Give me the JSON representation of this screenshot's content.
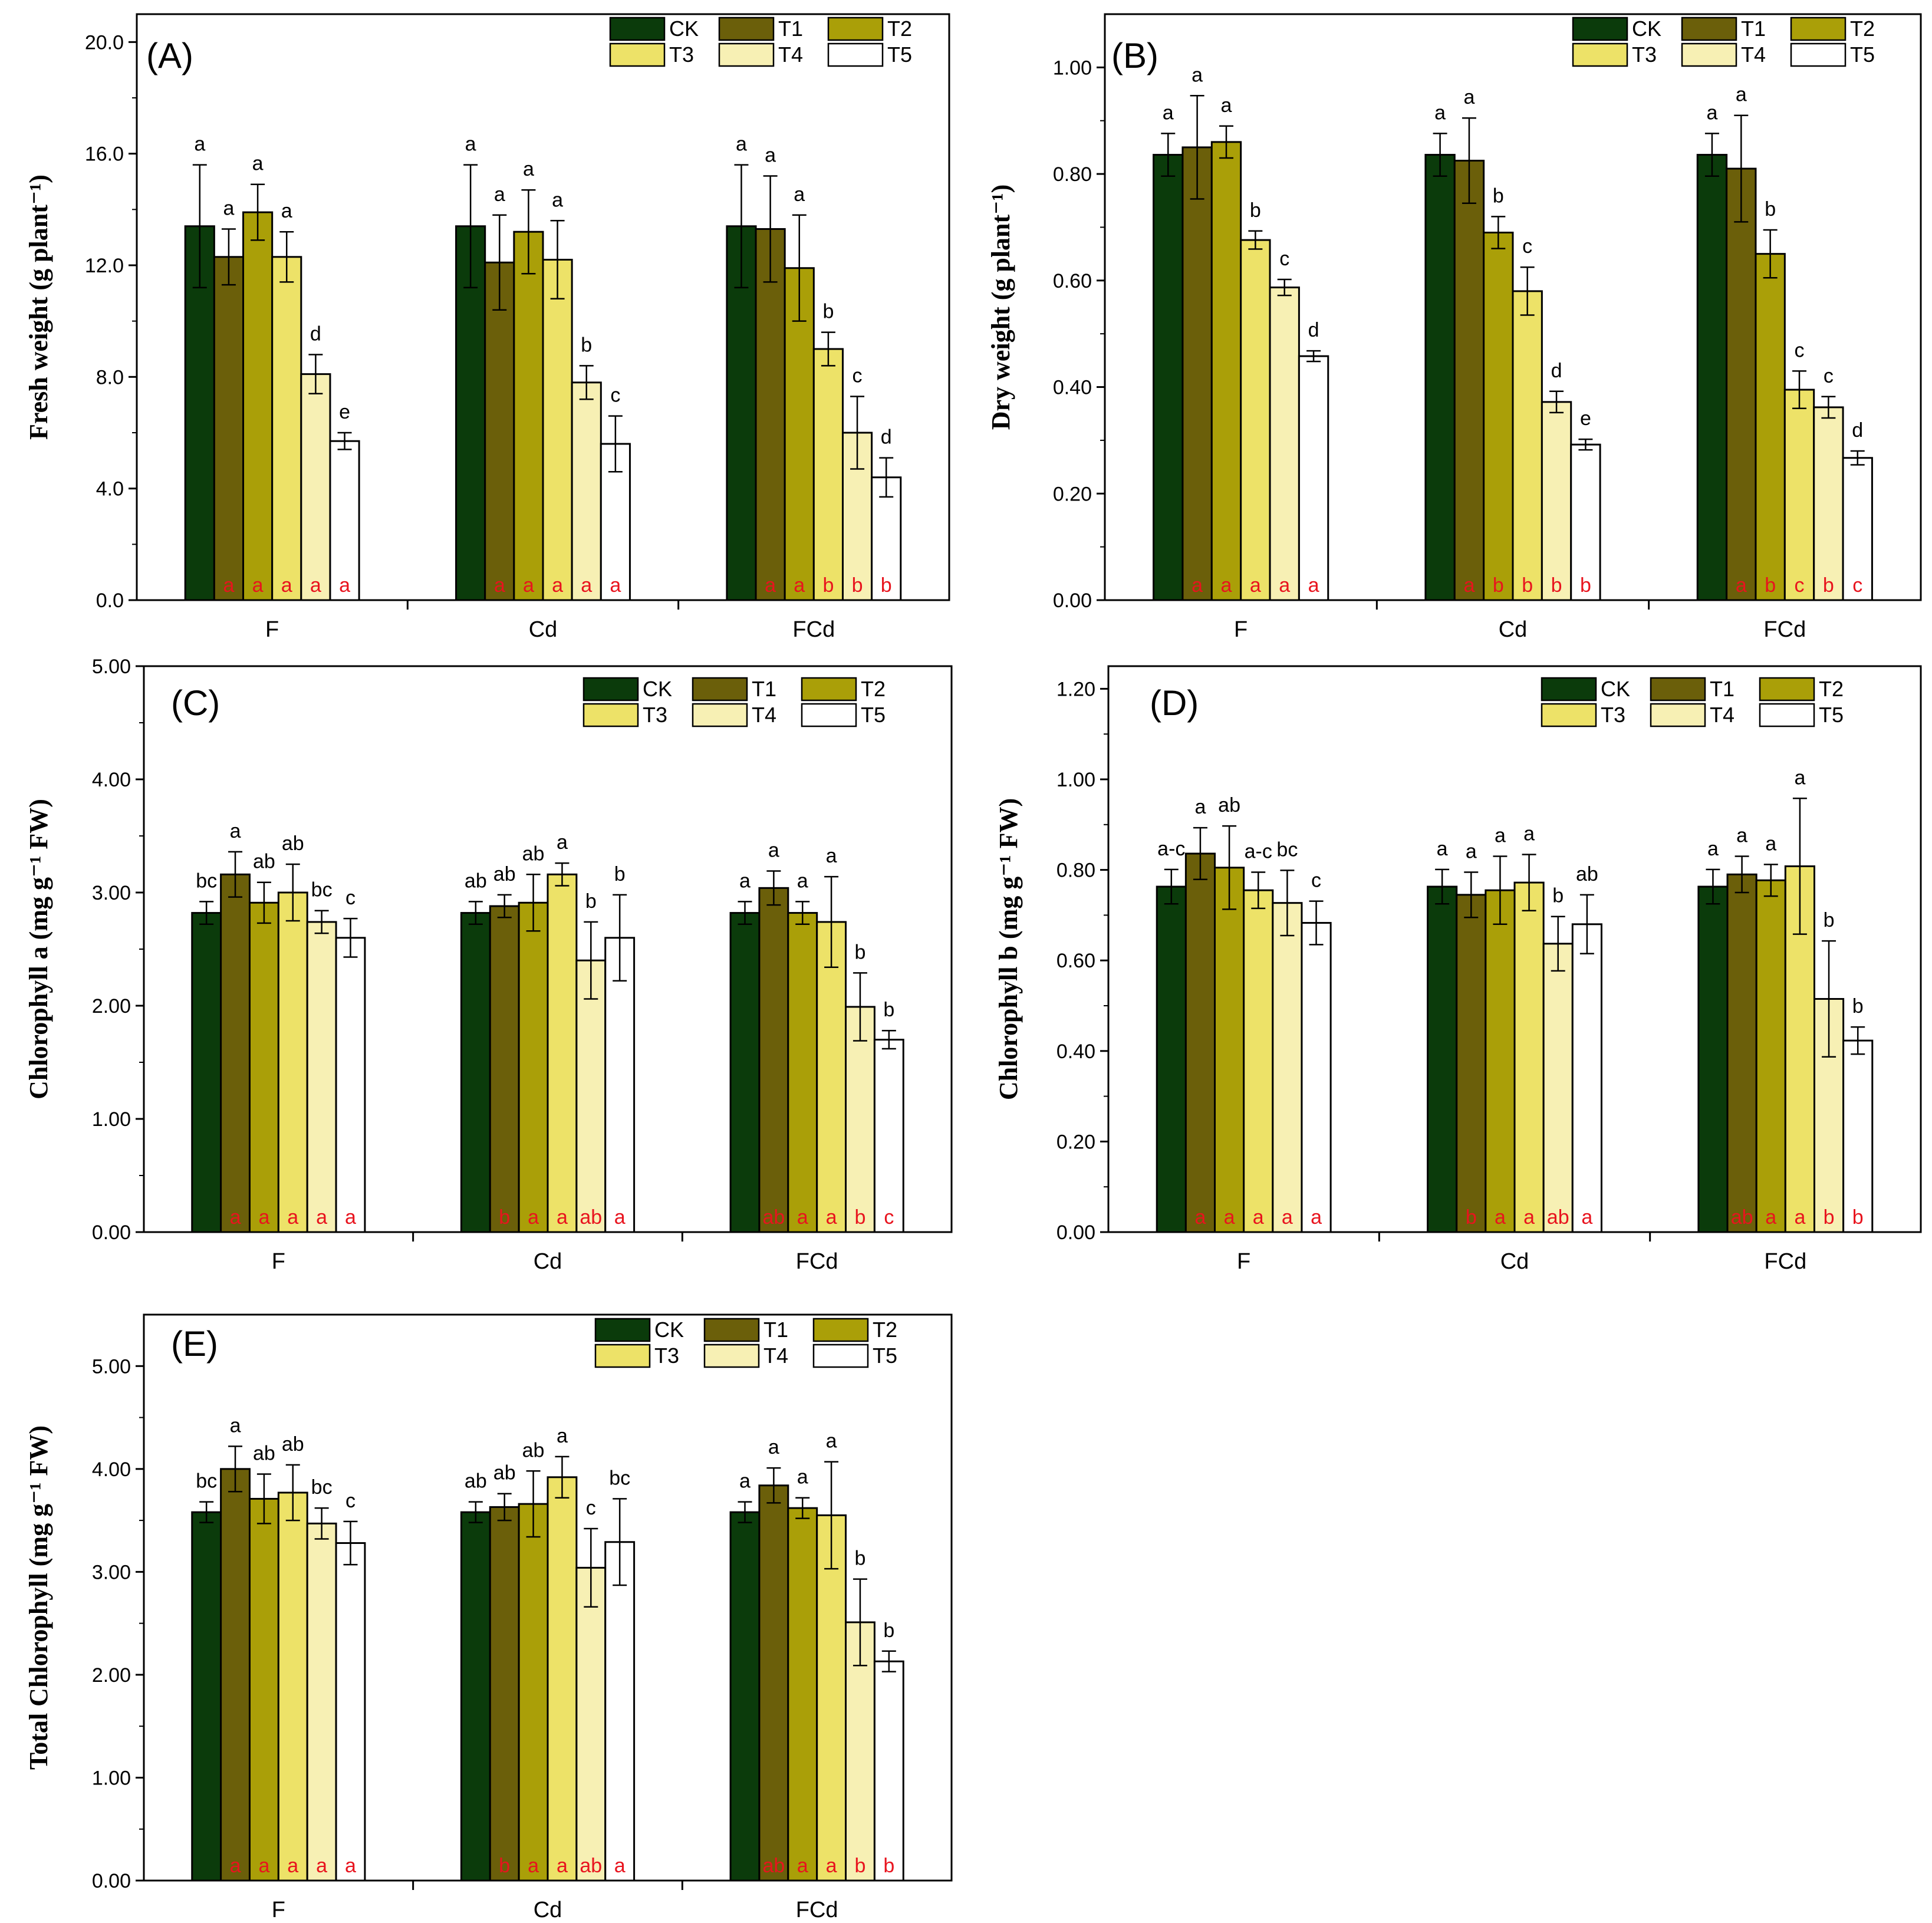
{
  "legend_labels": [
    "CK",
    "T1",
    "T2",
    "T3",
    "T4",
    "T5"
  ],
  "colors": {
    "CK": "#0b3b0b",
    "T1": "#6b5f0a",
    "T2": "#aa9f08",
    "T3": "#ede268",
    "T4": "#f7f0b4",
    "T5": "#ffffff",
    "axis": "#000000",
    "secondary_letters": "#e8141e"
  },
  "chart_data": [
    {
      "panel": "(A)",
      "type": "bar",
      "ylabel": "Fresh weight (g plant⁻¹)",
      "ylim": [
        0,
        21.0
      ],
      "yticks": [
        "0.0",
        "4.0",
        "8.0",
        "12.0",
        "16.0",
        "20.0"
      ],
      "ytick_values": [
        0,
        4,
        8,
        12,
        16,
        20
      ],
      "categories": [
        "F",
        "Cd",
        "FCd"
      ],
      "series": [
        {
          "name": "CK",
          "values": [
            13.4,
            13.4,
            13.4
          ],
          "errors": [
            2.2,
            2.2,
            2.2
          ]
        },
        {
          "name": "T1",
          "values": [
            12.3,
            12.1,
            13.3
          ],
          "errors": [
            1.0,
            1.7,
            1.9
          ]
        },
        {
          "name": "T2",
          "values": [
            13.9,
            13.2,
            11.9
          ],
          "errors": [
            1.0,
            1.5,
            1.9
          ]
        },
        {
          "name": "T3",
          "values": [
            12.3,
            12.2,
            9.0
          ],
          "errors": [
            0.9,
            1.4,
            0.6
          ]
        },
        {
          "name": "T4",
          "values": [
            8.1,
            7.8,
            6.0
          ],
          "errors": [
            0.7,
            0.6,
            1.3
          ]
        },
        {
          "name": "T5",
          "values": [
            5.7,
            5.6,
            4.4
          ],
          "errors": [
            0.3,
            1.0,
            0.7
          ]
        }
      ],
      "letters_top": [
        [
          "a",
          "a",
          "a"
        ],
        [
          "a",
          "a",
          "a"
        ],
        [
          "a",
          "a",
          "a"
        ],
        [
          "a",
          "a",
          "b"
        ],
        [
          "d",
          "b",
          "c"
        ],
        [
          "e",
          "c",
          "d"
        ]
      ],
      "letters_bottom": [
        [
          "",
          "",
          ""
        ],
        [
          "a",
          "a",
          "a"
        ],
        [
          "a",
          "a",
          "a"
        ],
        [
          "a",
          "a",
          "b"
        ],
        [
          "a",
          "a",
          "b"
        ],
        [
          "a",
          "a",
          "b"
        ]
      ]
    },
    {
      "panel": "(B)",
      "type": "bar",
      "ylabel": "Dry weight (g plant⁻¹)",
      "ylim": [
        0,
        1.1
      ],
      "yticks": [
        "0.00",
        "0.20",
        "0.40",
        "0.60",
        "0.80",
        "1.00"
      ],
      "ytick_values": [
        0,
        0.2,
        0.4,
        0.6,
        0.8,
        1.0
      ],
      "categories": [
        "F",
        "Cd",
        "FCd"
      ],
      "series": [
        {
          "name": "CK",
          "values": [
            0.836,
            0.836,
            0.836
          ],
          "errors": [
            0.04,
            0.04,
            0.04
          ]
        },
        {
          "name": "T1",
          "values": [
            0.85,
            0.825,
            0.81
          ],
          "errors": [
            0.097,
            0.08,
            0.1
          ]
        },
        {
          "name": "T2",
          "values": [
            0.86,
            0.69,
            0.65
          ],
          "errors": [
            0.03,
            0.03,
            0.045
          ]
        },
        {
          "name": "T3",
          "values": [
            0.676,
            0.58,
            0.395
          ],
          "errors": [
            0.017,
            0.045,
            0.035
          ]
        },
        {
          "name": "T4",
          "values": [
            0.587,
            0.372,
            0.362
          ],
          "errors": [
            0.015,
            0.02,
            0.02
          ]
        },
        {
          "name": "T5",
          "values": [
            0.458,
            0.292,
            0.267
          ],
          "errors": [
            0.01,
            0.01,
            0.013
          ]
        }
      ],
      "letters_top": [
        [
          "a",
          "a",
          "a"
        ],
        [
          "a",
          "a",
          "a"
        ],
        [
          "a",
          "b",
          "b"
        ],
        [
          "b",
          "c",
          "c"
        ],
        [
          "c",
          "d",
          "c"
        ],
        [
          "d",
          "e",
          "d"
        ]
      ],
      "letters_bottom": [
        [
          "",
          "",
          ""
        ],
        [
          "a",
          "a",
          "a"
        ],
        [
          "a",
          "b",
          "b"
        ],
        [
          "a",
          "b",
          "c"
        ],
        [
          "a",
          "b",
          "b"
        ],
        [
          "a",
          "b",
          "c"
        ]
      ]
    },
    {
      "panel": "(C)",
      "type": "bar",
      "ylabel": "Chlorophyll a (mg g⁻¹ FW)",
      "ylim": [
        0,
        5.0
      ],
      "yticks": [
        "0.00",
        "1.00",
        "2.00",
        "3.00",
        "4.00",
        "5.00"
      ],
      "ytick_values": [
        0,
        1,
        2,
        3,
        4,
        5
      ],
      "categories": [
        "F",
        "Cd",
        "FCd"
      ],
      "series": [
        {
          "name": "CK",
          "values": [
            2.82,
            2.82,
            2.82
          ],
          "errors": [
            0.1,
            0.1,
            0.1
          ]
        },
        {
          "name": "T1",
          "values": [
            3.16,
            2.88,
            3.04
          ],
          "errors": [
            0.2,
            0.1,
            0.15
          ]
        },
        {
          "name": "T2",
          "values": [
            2.91,
            2.91,
            2.82
          ],
          "errors": [
            0.18,
            0.25,
            0.1
          ]
        },
        {
          "name": "T3",
          "values": [
            3.0,
            3.16,
            2.74
          ],
          "errors": [
            0.25,
            0.1,
            0.4
          ]
        },
        {
          "name": "T4",
          "values": [
            2.74,
            2.4,
            1.99
          ],
          "errors": [
            0.1,
            0.34,
            0.3
          ]
        },
        {
          "name": "T5",
          "values": [
            2.6,
            2.6,
            1.7
          ],
          "errors": [
            0.17,
            0.38,
            0.08
          ]
        }
      ],
      "letters_top": [
        [
          "bc",
          "ab",
          "a"
        ],
        [
          "a",
          "ab",
          "a"
        ],
        [
          "ab",
          "ab",
          "a"
        ],
        [
          "ab",
          "a",
          "a"
        ],
        [
          "bc",
          "b",
          "b"
        ],
        [
          "c",
          "b",
          "b"
        ]
      ],
      "letters_bottom": [
        [
          "",
          "",
          ""
        ],
        [
          "a",
          "b",
          "ab"
        ],
        [
          "a",
          "a",
          "a"
        ],
        [
          "a",
          "a",
          "a"
        ],
        [
          "a",
          "ab",
          "b"
        ],
        [
          "a",
          "a",
          "c"
        ]
      ]
    },
    {
      "panel": "(D)",
      "type": "bar",
      "ylabel": "Chlorophyll b (mg g⁻¹ FW)",
      "ylim": [
        0,
        1.25
      ],
      "yticks": [
        "0.00",
        "0.20",
        "0.40",
        "0.60",
        "0.80",
        "1.00",
        "1.20"
      ],
      "ytick_values": [
        0,
        0.2,
        0.4,
        0.6,
        0.8,
        1.0,
        1.2
      ],
      "categories": [
        "F",
        "Cd",
        "FCd"
      ],
      "series": [
        {
          "name": "CK",
          "values": [
            0.763,
            0.763,
            0.763
          ],
          "errors": [
            0.038,
            0.038,
            0.038
          ]
        },
        {
          "name": "T1",
          "values": [
            0.836,
            0.745,
            0.79
          ],
          "errors": [
            0.057,
            0.05,
            0.04
          ]
        },
        {
          "name": "T2",
          "values": [
            0.805,
            0.755,
            0.777
          ],
          "errors": [
            0.092,
            0.075,
            0.035
          ]
        },
        {
          "name": "T3",
          "values": [
            0.755,
            0.772,
            0.808
          ],
          "errors": [
            0.04,
            0.062,
            0.15
          ]
        },
        {
          "name": "T4",
          "values": [
            0.727,
            0.637,
            0.515
          ],
          "errors": [
            0.072,
            0.06,
            0.128
          ]
        },
        {
          "name": "T5",
          "values": [
            0.683,
            0.68,
            0.423
          ],
          "errors": [
            0.048,
            0.065,
            0.03
          ]
        }
      ],
      "letters_top": [
        [
          "a-c",
          "a",
          "a"
        ],
        [
          "a",
          "a",
          "a"
        ],
        [
          "ab",
          "a",
          "a"
        ],
        [
          "a-c",
          "a",
          "a"
        ],
        [
          "bc",
          "b",
          "b"
        ],
        [
          "c",
          "ab",
          "b"
        ]
      ],
      "letters_bottom": [
        [
          "",
          "",
          ""
        ],
        [
          "a",
          "b",
          "ab"
        ],
        [
          "a",
          "a",
          "a"
        ],
        [
          "a",
          "a",
          "a"
        ],
        [
          "a",
          "ab",
          "b"
        ],
        [
          "a",
          "a",
          "b"
        ]
      ]
    },
    {
      "panel": "(E)",
      "type": "bar",
      "ylabel": "Total Chlorophyll  (mg g⁻¹ FW)",
      "ylim": [
        0,
        5.5
      ],
      "yticks": [
        "0.00",
        "1.00",
        "2.00",
        "3.00",
        "4.00",
        "5.00"
      ],
      "ytick_values": [
        0,
        1,
        2,
        3,
        4,
        5
      ],
      "categories": [
        "F",
        "Cd",
        "FCd"
      ],
      "series": [
        {
          "name": "CK",
          "values": [
            3.58,
            3.58,
            3.58
          ],
          "errors": [
            0.1,
            0.1,
            0.1
          ]
        },
        {
          "name": "T1",
          "values": [
            4.0,
            3.63,
            3.84
          ],
          "errors": [
            0.22,
            0.13,
            0.17
          ]
        },
        {
          "name": "T2",
          "values": [
            3.71,
            3.66,
            3.62
          ],
          "errors": [
            0.24,
            0.32,
            0.1
          ]
        },
        {
          "name": "T3",
          "values": [
            3.77,
            3.92,
            3.55
          ],
          "errors": [
            0.27,
            0.2,
            0.52
          ]
        },
        {
          "name": "T4",
          "values": [
            3.47,
            3.04,
            2.51
          ],
          "errors": [
            0.15,
            0.38,
            0.42
          ]
        },
        {
          "name": "T5",
          "values": [
            3.28,
            3.29,
            2.13
          ],
          "errors": [
            0.21,
            0.42,
            0.1
          ]
        }
      ],
      "letters_top": [
        [
          "bc",
          "ab",
          "a"
        ],
        [
          "a",
          "ab",
          "a"
        ],
        [
          "ab",
          "ab",
          "a"
        ],
        [
          "ab",
          "a",
          "a"
        ],
        [
          "bc",
          "c",
          "b"
        ],
        [
          "c",
          "bc",
          "b"
        ]
      ],
      "letters_bottom": [
        [
          "",
          "",
          ""
        ],
        [
          "a",
          "b",
          "ab"
        ],
        [
          "a",
          "a",
          "a"
        ],
        [
          "a",
          "a",
          "a"
        ],
        [
          "a",
          "ab",
          "b"
        ],
        [
          "a",
          "a",
          "b"
        ]
      ]
    }
  ]
}
